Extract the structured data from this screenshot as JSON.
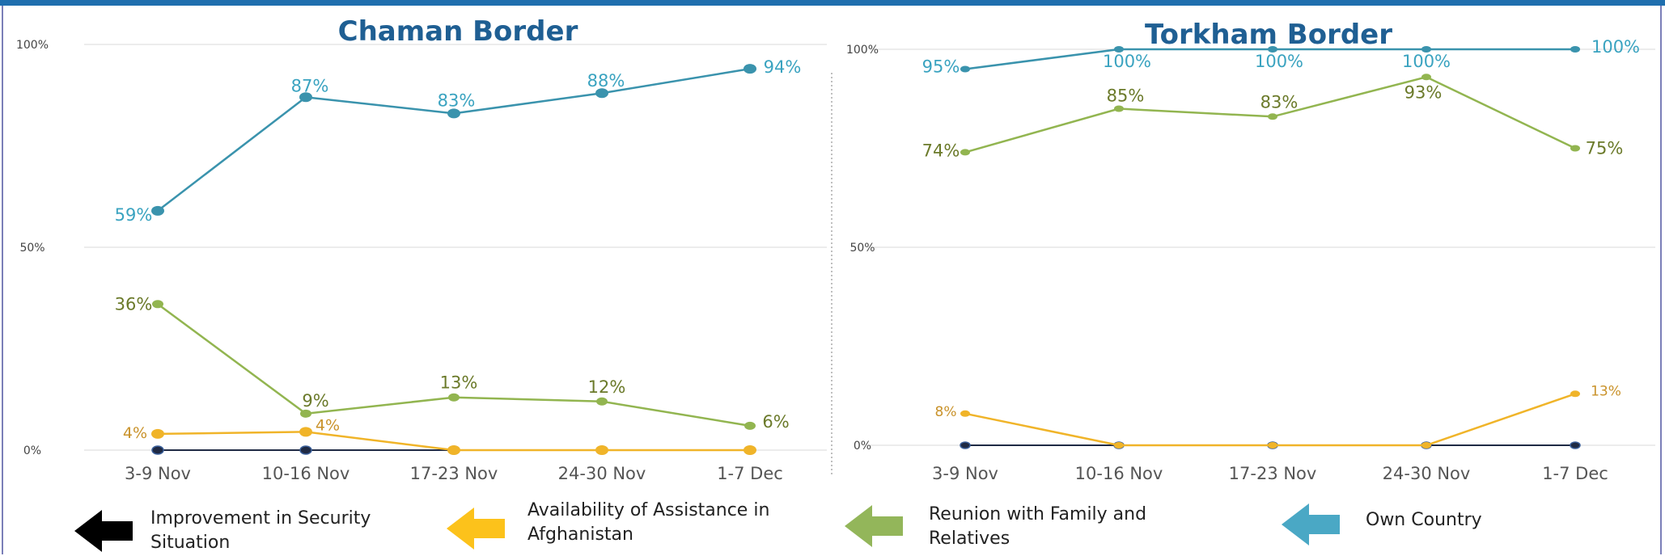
{
  "chart_data": [
    {
      "type": "line",
      "title": "Chaman Border",
      "categories": [
        "3-9 Nov",
        "10-16 Nov",
        "17-23 Nov",
        "24-30 Nov",
        "1-7 Dec"
      ],
      "yticks": [
        "0%",
        "50%",
        "100%"
      ],
      "ylim": [
        0,
        100
      ],
      "grid": true,
      "series": [
        {
          "name": "Own Country",
          "color": "#3a93ad",
          "label_color": "#3aa3c0",
          "values": [
            59,
            87,
            83,
            88,
            94
          ],
          "labels": [
            "59%",
            "87%",
            "83%",
            "88%",
            "94%"
          ]
        },
        {
          "name": "Reunion with Family and Relatives",
          "color": "#92b550",
          "label_color": "#6b7a2a",
          "values": [
            36,
            9,
            13,
            12,
            6
          ],
          "labels": [
            "36%",
            "9%",
            "13%",
            "12%",
            "6%"
          ]
        },
        {
          "name": "Availability of Assistance in Afghanistan",
          "color": "#f0b429",
          "label_color": "#c9922a",
          "values": [
            4,
            4.5,
            0,
            0,
            0
          ],
          "labels": [
            "4%",
            "4%",
            "",
            "",
            ""
          ]
        },
        {
          "name": "Improvement in Security Situation",
          "color": "#1f2a44",
          "label_color": "#1f2a44",
          "values": [
            0,
            0,
            0,
            0,
            0
          ],
          "labels": [
            "",
            "",
            "",
            "",
            ""
          ]
        }
      ]
    },
    {
      "type": "line",
      "title": "Torkham Border",
      "categories": [
        "3-9 Nov",
        "10-16 Nov",
        "17-23 Nov",
        "24-30 Nov",
        "1-7 Dec"
      ],
      "yticks": [
        "0%",
        "50%",
        "100%"
      ],
      "ylim": [
        0,
        100
      ],
      "grid": true,
      "series": [
        {
          "name": "Own Country",
          "color": "#3a93ad",
          "label_color": "#3aa3c0",
          "values": [
            95,
            100,
            100,
            100,
            100
          ],
          "labels": [
            "95%",
            "100%",
            "100%",
            "100%",
            "100%"
          ]
        },
        {
          "name": "Reunion with Family and Relatives",
          "color": "#92b550",
          "label_color": "#6b7a2a",
          "values": [
            74,
            85,
            83,
            93,
            75
          ],
          "labels": [
            "74%",
            "85%",
            "83%",
            "93%",
            "75%"
          ]
        },
        {
          "name": "Availability of Assistance in Afghanistan",
          "color": "#f0b429",
          "label_color": "#c9922a",
          "values": [
            8,
            0,
            0,
            0,
            13
          ],
          "labels": [
            "8%",
            "",
            "",
            "",
            "13%"
          ]
        },
        {
          "name": "Improvement in Security Situation",
          "color": "#1f2a44",
          "label_color": "#1f2a44",
          "values": [
            0,
            0,
            0,
            0,
            0
          ],
          "labels": [
            "",
            "",
            "",
            "",
            ""
          ]
        }
      ]
    }
  ],
  "legend": [
    {
      "label": "Improvement in Security Situation",
      "color": "#000000",
      "icon": "arrow-left-icon"
    },
    {
      "label": "Availability of Assistance in Afghanistan",
      "color": "#fcc21b",
      "icon": "arrow-left-icon"
    },
    {
      "label": "Reunion with Family and Relatives",
      "color": "#93b65a",
      "icon": "arrow-left-icon"
    },
    {
      "label": "Own Country",
      "color": "#4aa8c5",
      "icon": "arrow-left-icon"
    }
  ]
}
